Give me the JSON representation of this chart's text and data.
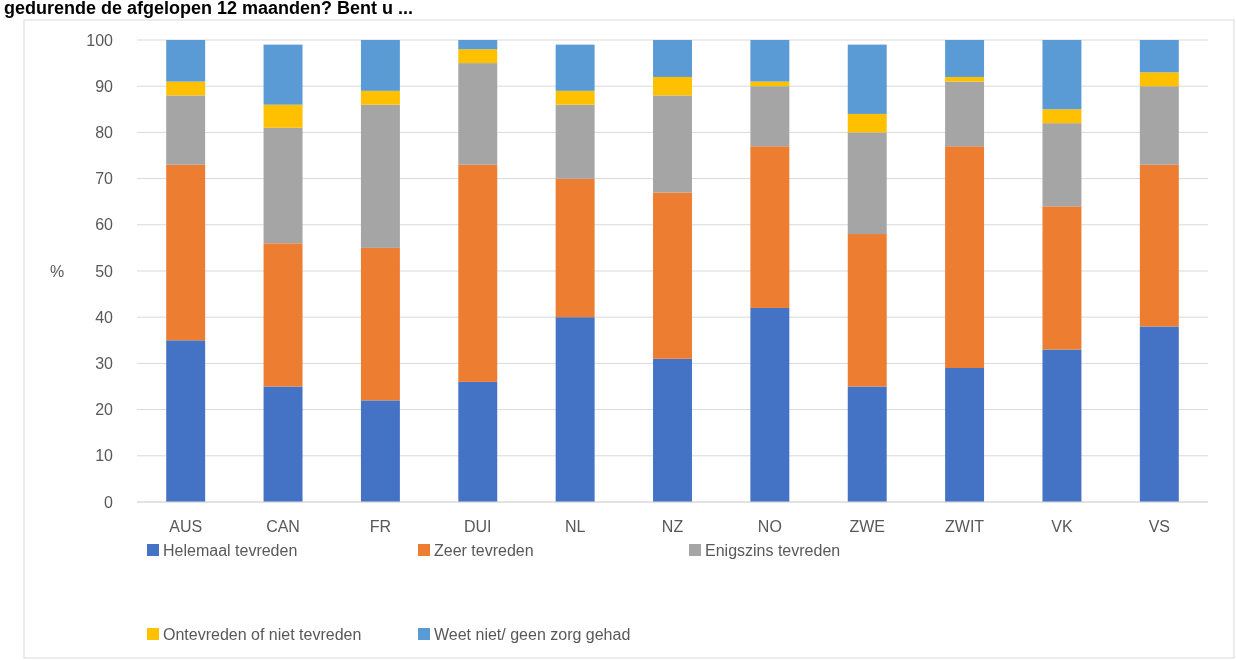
{
  "chart_data": {
    "type": "bar",
    "stacked": true,
    "title": "gedurende de afgelopen 12 maanden? Bent u ...",
    "ylabel": "%",
    "categories": [
      "AUS",
      "CAN",
      "FR",
      "DUI",
      "NL",
      "NZ",
      "NO",
      "ZWE",
      "ZWIT",
      "VK",
      "VS"
    ],
    "series": [
      {
        "name": "Helemaal tevreden",
        "color": "#4472c4",
        "values": [
          35,
          25,
          22,
          26,
          40,
          31,
          42,
          25,
          29,
          33,
          38
        ]
      },
      {
        "name": "Zeer tevreden",
        "color": "#ed7d31",
        "values": [
          38,
          31,
          33,
          47,
          30,
          36,
          35,
          33,
          48,
          31,
          35
        ]
      },
      {
        "name": "Enigszins tevreden",
        "color": "#a5a5a5",
        "values": [
          15,
          25,
          31,
          22,
          16,
          21,
          13,
          22,
          14,
          18,
          17
        ]
      },
      {
        "name": "Ontevreden of niet tevreden",
        "color": "#ffc000",
        "values": [
          3,
          5,
          3,
          3,
          3,
          4,
          1,
          4,
          1,
          3,
          3
        ]
      },
      {
        "name": "Weet niet/ geen zorg gehad",
        "color": "#5b9bd5",
        "values": [
          9,
          13,
          11,
          2,
          10,
          8,
          9,
          15,
          8,
          15,
          7
        ]
      }
    ],
    "ylim": [
      0,
      100
    ],
    "yticks": [
      0,
      10,
      20,
      30,
      40,
      50,
      60,
      70,
      80,
      90,
      100
    ],
    "grid": "y",
    "legend": "bottom"
  }
}
